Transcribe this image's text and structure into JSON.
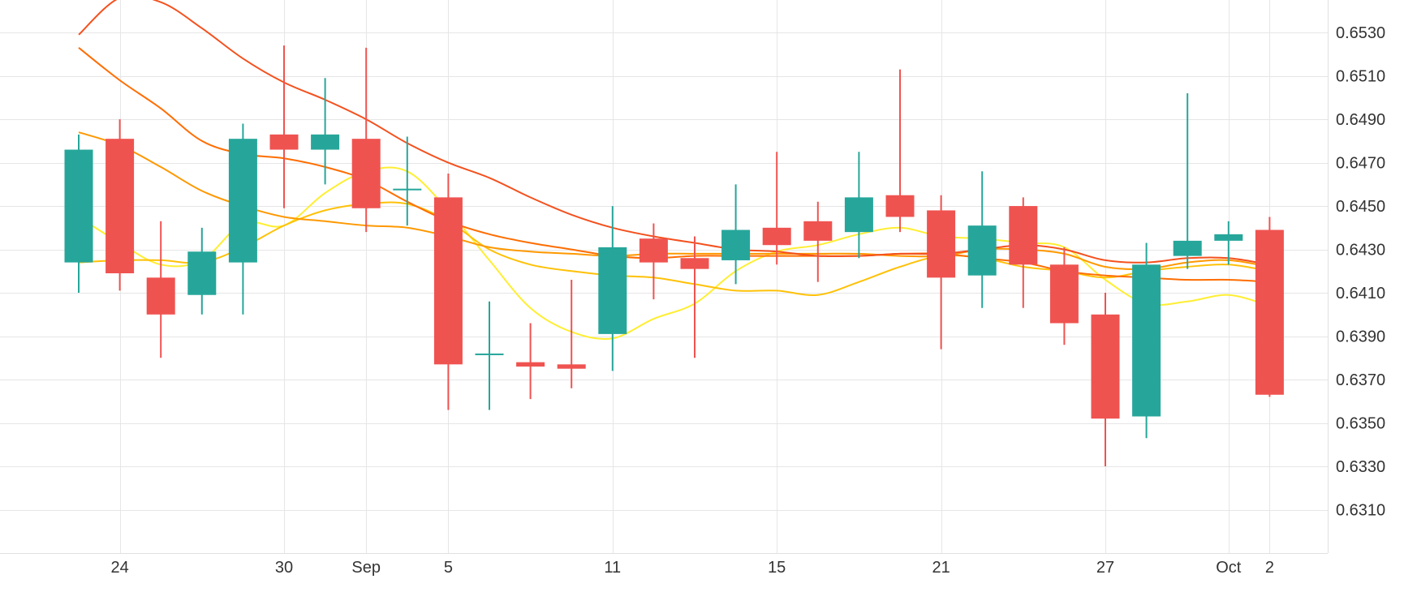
{
  "chart_data": {
    "type": "candlestick",
    "ylim": [
      0.629,
      0.6545
    ],
    "xlim": [
      0,
      30.8
    ],
    "grid": true,
    "y_ticks": [
      "0.6310",
      "0.6330",
      "0.6350",
      "0.6370",
      "0.6390",
      "0.6410",
      "0.6430",
      "0.6450",
      "0.6470",
      "0.6490",
      "0.6510",
      "0.6530"
    ],
    "x_ticks": [
      {
        "label": "24",
        "x": 1
      },
      {
        "label": "30",
        "x": 5
      },
      {
        "label": "Sep",
        "x": 7
      },
      {
        "label": "5",
        "x": 9
      },
      {
        "label": "11",
        "x": 13
      },
      {
        "label": "15",
        "x": 17
      },
      {
        "label": "21",
        "x": 21
      },
      {
        "label": "27",
        "x": 25
      },
      {
        "label": "Oct",
        "x": 28
      },
      {
        "label": "2",
        "x": 29
      }
    ],
    "up_color": "#26a69a",
    "down_color": "#ef5350",
    "candles": [
      {
        "open": 0.6424,
        "high": 0.6483,
        "low": 0.641,
        "close": 0.6476
      },
      {
        "open": 0.6481,
        "high": 0.649,
        "low": 0.6411,
        "close": 0.6419
      },
      {
        "open": 0.6417,
        "high": 0.6443,
        "low": 0.638,
        "close": 0.64
      },
      {
        "open": 0.6409,
        "high": 0.644,
        "low": 0.64,
        "close": 0.6429
      },
      {
        "open": 0.6424,
        "high": 0.6488,
        "low": 0.64,
        "close": 0.6481
      },
      {
        "open": 0.6483,
        "high": 0.6524,
        "low": 0.6449,
        "close": 0.6476
      },
      {
        "open": 0.6476,
        "high": 0.6509,
        "low": 0.646,
        "close": 0.6483
      },
      {
        "open": 0.6481,
        "high": 0.6523,
        "low": 0.6438,
        "close": 0.6449
      },
      {
        "open": 0.6458,
        "high": 0.6482,
        "low": 0.6441,
        "close": 0.6458
      },
      {
        "open": 0.6454,
        "high": 0.6465,
        "low": 0.6356,
        "close": 0.6377
      },
      {
        "open": 0.6382,
        "high": 0.6406,
        "low": 0.6356,
        "close": 0.6382
      },
      {
        "open": 0.6378,
        "high": 0.6396,
        "low": 0.6361,
        "close": 0.6376
      },
      {
        "open": 0.6377,
        "high": 0.6416,
        "low": 0.6366,
        "close": 0.6375
      },
      {
        "open": 0.6391,
        "high": 0.645,
        "low": 0.6374,
        "close": 0.6431
      },
      {
        "open": 0.6435,
        "high": 0.6442,
        "low": 0.6407,
        "close": 0.6424
      },
      {
        "open": 0.6426,
        "high": 0.6436,
        "low": 0.638,
        "close": 0.6421
      },
      {
        "open": 0.6425,
        "high": 0.646,
        "low": 0.6414,
        "close": 0.6439
      },
      {
        "open": 0.644,
        "high": 0.6475,
        "low": 0.6423,
        "close": 0.6432
      },
      {
        "open": 0.6443,
        "high": 0.6452,
        "low": 0.6415,
        "close": 0.6434
      },
      {
        "open": 0.6438,
        "high": 0.6475,
        "low": 0.6426,
        "close": 0.6454
      },
      {
        "open": 0.6455,
        "high": 0.6513,
        "low": 0.6438,
        "close": 0.6445
      },
      {
        "open": 0.6448,
        "high": 0.6455,
        "low": 0.6384,
        "close": 0.6417
      },
      {
        "open": 0.6418,
        "high": 0.6466,
        "low": 0.6403,
        "close": 0.6441
      },
      {
        "open": 0.645,
        "high": 0.6454,
        "low": 0.6403,
        "close": 0.6423
      },
      {
        "open": 0.6423,
        "high": 0.6431,
        "low": 0.6386,
        "close": 0.6396
      },
      {
        "open": 0.64,
        "high": 0.641,
        "low": 0.633,
        "close": 0.6352
      },
      {
        "open": 0.6353,
        "high": 0.6433,
        "low": 0.6343,
        "close": 0.6423
      },
      {
        "open": 0.6427,
        "high": 0.6502,
        "low": 0.6421,
        "close": 0.6434
      },
      {
        "open": 0.6434,
        "high": 0.6443,
        "low": 0.6423,
        "close": 0.6437
      },
      {
        "open": 0.6439,
        "high": 0.6445,
        "low": 0.6362,
        "close": 0.6363
      }
    ],
    "moving_averages": [
      {
        "color": "#ffee33",
        "values": [
          [
            0,
            0.6445
          ],
          [
            1,
            0.6433
          ],
          [
            2,
            0.6423
          ],
          [
            3,
            0.6425
          ],
          [
            4,
            0.6442
          ],
          [
            5,
            0.6441
          ],
          [
            6,
            0.6456
          ],
          [
            7,
            0.6466
          ],
          [
            8,
            0.6466
          ],
          [
            9,
            0.6448
          ],
          [
            10,
            0.6425
          ],
          [
            11,
            0.6403
          ],
          [
            12,
            0.6392
          ],
          [
            13,
            0.6389
          ],
          [
            14,
            0.6398
          ],
          [
            15,
            0.6405
          ],
          [
            16,
            0.642
          ],
          [
            17,
            0.6429
          ],
          [
            18,
            0.6432
          ],
          [
            19,
            0.6437
          ],
          [
            20,
            0.644
          ],
          [
            21,
            0.6436
          ],
          [
            22,
            0.6435
          ],
          [
            23,
            0.6433
          ],
          [
            24,
            0.6431
          ],
          [
            25,
            0.6416
          ],
          [
            26,
            0.6405
          ],
          [
            27,
            0.6406
          ],
          [
            28,
            0.6409
          ],
          [
            29,
            0.6404
          ]
        ]
      },
      {
        "color": "#ffc107",
        "values": [
          [
            0,
            0.6424
          ],
          [
            1,
            0.6425
          ],
          [
            2,
            0.6425
          ],
          [
            3,
            0.6424
          ],
          [
            4,
            0.6431
          ],
          [
            5,
            0.6441
          ],
          [
            6,
            0.6448
          ],
          [
            7,
            0.6451
          ],
          [
            8,
            0.6451
          ],
          [
            9,
            0.6443
          ],
          [
            10,
            0.643
          ],
          [
            11,
            0.6423
          ],
          [
            12,
            0.642
          ],
          [
            13,
            0.6418
          ],
          [
            14,
            0.6417
          ],
          [
            15,
            0.6414
          ],
          [
            16,
            0.6411
          ],
          [
            17,
            0.6411
          ],
          [
            18,
            0.6409
          ],
          [
            19,
            0.6415
          ],
          [
            20,
            0.6422
          ],
          [
            21,
            0.6427
          ],
          [
            22,
            0.6426
          ],
          [
            23,
            0.6422
          ],
          [
            24,
            0.642
          ],
          [
            25,
            0.6417
          ],
          [
            26,
            0.642
          ],
          [
            27,
            0.6422
          ],
          [
            28,
            0.6423
          ],
          [
            29,
            0.642
          ]
        ]
      },
      {
        "color": "#ff9800",
        "values": [
          [
            0,
            0.6484
          ],
          [
            1,
            0.6478
          ],
          [
            2,
            0.6468
          ],
          [
            3,
            0.6457
          ],
          [
            4,
            0.645
          ],
          [
            5,
            0.6445
          ],
          [
            6,
            0.6443
          ],
          [
            7,
            0.6441
          ],
          [
            8,
            0.644
          ],
          [
            9,
            0.6436
          ],
          [
            10,
            0.6431
          ],
          [
            11,
            0.6429
          ],
          [
            12,
            0.6428
          ],
          [
            13,
            0.6427
          ],
          [
            14,
            0.6428
          ],
          [
            15,
            0.6428
          ],
          [
            16,
            0.6428
          ],
          [
            17,
            0.6428
          ],
          [
            18,
            0.6428
          ],
          [
            19,
            0.6428
          ],
          [
            20,
            0.6427
          ],
          [
            21,
            0.6427
          ],
          [
            22,
            0.643
          ],
          [
            23,
            0.643
          ],
          [
            24,
            0.6428
          ],
          [
            25,
            0.6422
          ],
          [
            26,
            0.6421
          ],
          [
            27,
            0.6424
          ],
          [
            28,
            0.6425
          ],
          [
            29,
            0.6422
          ]
        ]
      },
      {
        "color": "#ff6d00",
        "values": [
          [
            0,
            0.6523
          ],
          [
            1,
            0.6508
          ],
          [
            2,
            0.6495
          ],
          [
            3,
            0.648
          ],
          [
            4,
            0.6474
          ],
          [
            5,
            0.6472
          ],
          [
            6,
            0.6468
          ],
          [
            7,
            0.6462
          ],
          [
            8,
            0.6452
          ],
          [
            9,
            0.6443
          ],
          [
            10,
            0.6437
          ],
          [
            11,
            0.6433
          ],
          [
            12,
            0.643
          ],
          [
            13,
            0.6427
          ],
          [
            14,
            0.6426
          ],
          [
            15,
            0.6427
          ],
          [
            16,
            0.6427
          ],
          [
            17,
            0.6427
          ],
          [
            18,
            0.6427
          ],
          [
            19,
            0.6427
          ],
          [
            20,
            0.6428
          ],
          [
            21,
            0.6428
          ],
          [
            22,
            0.6426
          ],
          [
            23,
            0.6424
          ],
          [
            24,
            0.642
          ],
          [
            25,
            0.6418
          ],
          [
            26,
            0.6417
          ],
          [
            27,
            0.6416
          ],
          [
            28,
            0.6416
          ],
          [
            29,
            0.6415
          ]
        ]
      },
      {
        "color": "#f4511e",
        "values": [
          [
            0,
            0.6529
          ],
          [
            1,
            0.6546
          ],
          [
            2,
            0.6544
          ],
          [
            3,
            0.6532
          ],
          [
            4,
            0.6518
          ],
          [
            5,
            0.6507
          ],
          [
            6,
            0.6499
          ],
          [
            7,
            0.649
          ],
          [
            8,
            0.6479
          ],
          [
            9,
            0.647
          ],
          [
            10,
            0.6463
          ],
          [
            11,
            0.6454
          ],
          [
            12,
            0.6446
          ],
          [
            13,
            0.644
          ],
          [
            14,
            0.6436
          ],
          [
            15,
            0.6433
          ],
          [
            16,
            0.643
          ],
          [
            17,
            0.6429
          ],
          [
            18,
            0.6427
          ],
          [
            19,
            0.6427
          ],
          [
            20,
            0.6428
          ],
          [
            21,
            0.6428
          ],
          [
            22,
            0.643
          ],
          [
            23,
            0.6432
          ],
          [
            24,
            0.643
          ],
          [
            25,
            0.6425
          ],
          [
            26,
            0.6424
          ],
          [
            27,
            0.6426
          ],
          [
            28,
            0.6426
          ],
          [
            29,
            0.6423
          ]
        ]
      }
    ]
  }
}
